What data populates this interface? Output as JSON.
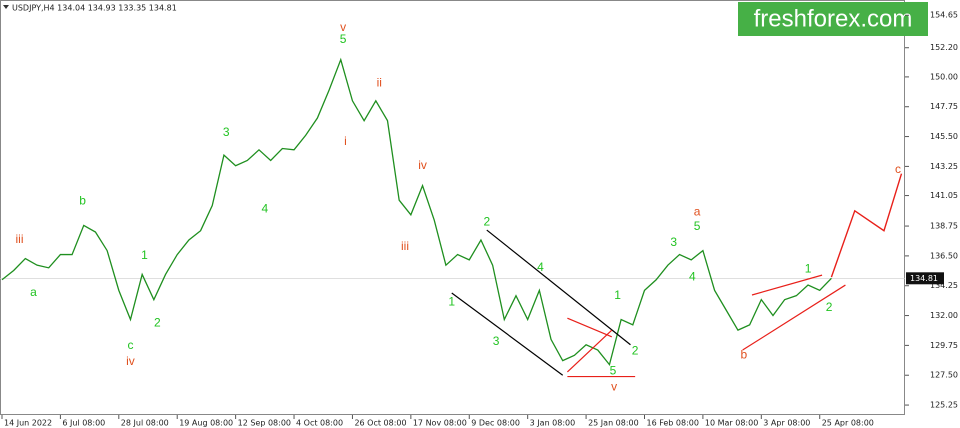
{
  "chart_data": {
    "type": "line",
    "header": "USDJPY,H4  134.04 134.93 133.35 134.81",
    "watermark": "freshforex.com",
    "categories": [
      "14 Jun 2022",
      null,
      null,
      null,
      null,
      "6 Jul 08:00",
      null,
      null,
      null,
      null,
      "28 Jul 08:00",
      null,
      null,
      null,
      null,
      "19 Aug 08:00",
      null,
      null,
      null,
      null,
      "12 Sep 08:00",
      null,
      null,
      null,
      null,
      "4 Oct 08:00",
      null,
      null,
      null,
      null,
      "26 Oct 08:00",
      null,
      null,
      null,
      null,
      "17 Nov 08:00",
      null,
      null,
      null,
      null,
      "9 Dec 08:00",
      null,
      null,
      null,
      null,
      "3 Jan 08:00",
      null,
      null,
      null,
      null,
      "25 Jan 08:00",
      null,
      null,
      null,
      null,
      "16 Feb 08:00",
      null,
      null,
      null,
      null,
      "10 Mar 08:00",
      null,
      null,
      null,
      null,
      "3 Apr 08:00",
      null,
      null,
      null,
      null,
      "25 Apr 08:00",
      null
    ],
    "series": [
      {
        "name": "USDJPY",
        "color": "#1f8f1f",
        "values": [
          134.7,
          135.4,
          136.3,
          135.8,
          135.6,
          136.6,
          136.6,
          138.8,
          138.3,
          136.9,
          133.9,
          131.7,
          135.1,
          133.2,
          135.1,
          136.6,
          137.7,
          138.4,
          140.3,
          144.1,
          143.3,
          143.7,
          144.5,
          143.7,
          144.6,
          144.5,
          145.6,
          146.9,
          149.0,
          151.3,
          148.2,
          146.7,
          148.2,
          146.7,
          140.7,
          139.6,
          141.8,
          139.2,
          135.8,
          136.6,
          136.2,
          137.7,
          135.8,
          131.7,
          133.5,
          131.7,
          133.9,
          130.2,
          128.6,
          129.0,
          129.8,
          129.4,
          128.3,
          131.7,
          131.3,
          133.9,
          134.7,
          135.8,
          136.6,
          136.2,
          136.9,
          133.9,
          132.4,
          130.9,
          131.3,
          133.2,
          132.0,
          133.2,
          133.5,
          134.3,
          133.9,
          134.81
        ]
      }
    ],
    "forecast": {
      "color": "#e8201a",
      "x": [
        71,
        73,
        75.5,
        77
      ],
      "values": [
        134.9,
        139.9,
        138.4,
        142.7
      ]
    },
    "lines": [
      {
        "color": "#000000",
        "x": [
          41.5,
          53.8
        ],
        "values": [
          138.45,
          129.8
        ]
      },
      {
        "color": "#000000",
        "x": [
          38.5,
          48.0
        ],
        "values": [
          133.7,
          127.5
        ]
      },
      {
        "color": "#e8201a",
        "x": [
          48.4,
          52.2
        ],
        "values": [
          131.8,
          130.4
        ]
      },
      {
        "color": "#e8201a",
        "x": [
          48.4,
          52.2
        ],
        "values": [
          127.75,
          130.9
        ]
      },
      {
        "color": "#e8201a",
        "x": [
          48.4,
          54.2
        ],
        "values": [
          127.4,
          127.4
        ]
      },
      {
        "color": "#e8201a",
        "x": [
          64.2,
          70.2
        ],
        "values": [
          133.55,
          135.05
        ]
      },
      {
        "color": "#e8201a",
        "x": [
          63.4,
          72.2
        ],
        "values": [
          129.4,
          134.3
        ]
      }
    ],
    "annotations": [
      {
        "text": "iii",
        "x": 1.5,
        "y": 137.7,
        "color": "#e0501e"
      },
      {
        "text": "a",
        "x": 2.7,
        "y": 133.7,
        "color": "#22c322"
      },
      {
        "text": "b",
        "x": 6.9,
        "y": 140.6,
        "color": "#22c322"
      },
      {
        "text": "1",
        "x": 12.2,
        "y": 136.5,
        "color": "#22c322"
      },
      {
        "text": "2",
        "x": 13.3,
        "y": 131.4,
        "color": "#22c322"
      },
      {
        "text": "c",
        "x": 11.0,
        "y": 129.7,
        "color": "#22c322"
      },
      {
        "text": "iv",
        "x": 11.0,
        "y": 128.5,
        "color": "#e0501e"
      },
      {
        "text": "3",
        "x": 19.2,
        "y": 145.8,
        "color": "#22c322"
      },
      {
        "text": "4",
        "x": 22.5,
        "y": 140.0,
        "color": "#22c322"
      },
      {
        "text": "v",
        "x": 29.2,
        "y": 153.7,
        "color": "#e0501e"
      },
      {
        "text": "5",
        "x": 29.2,
        "y": 152.8,
        "color": "#22c322"
      },
      {
        "text": "ii",
        "x": 32.3,
        "y": 149.5,
        "color": "#e0501e"
      },
      {
        "text": "i",
        "x": 29.4,
        "y": 145.1,
        "color": "#e0501e"
      },
      {
        "text": "iv",
        "x": 36.0,
        "y": 143.3,
        "color": "#e0501e"
      },
      {
        "text": "iii",
        "x": 34.5,
        "y": 137.2,
        "color": "#e0501e"
      },
      {
        "text": "1",
        "x": 38.5,
        "y": 133.0,
        "color": "#22c322"
      },
      {
        "text": "2",
        "x": 41.5,
        "y": 139.05,
        "color": "#22c322"
      },
      {
        "text": "3",
        "x": 42.3,
        "y": 130.0,
        "color": "#22c322"
      },
      {
        "text": "4",
        "x": 46.1,
        "y": 135.6,
        "color": "#22c322"
      },
      {
        "text": "5",
        "x": 52.3,
        "y": 127.8,
        "color": "#22c322"
      },
      {
        "text": "v",
        "x": 52.4,
        "y": 126.6,
        "color": "#e0501e"
      },
      {
        "text": "1",
        "x": 52.7,
        "y": 133.5,
        "color": "#22c322"
      },
      {
        "text": "2",
        "x": 54.2,
        "y": 129.3,
        "color": "#22c322"
      },
      {
        "text": "3",
        "x": 57.5,
        "y": 137.5,
        "color": "#22c322"
      },
      {
        "text": "4",
        "x": 59.1,
        "y": 134.9,
        "color": "#22c322"
      },
      {
        "text": "5",
        "x": 59.5,
        "y": 138.7,
        "color": "#22c322"
      },
      {
        "text": "a",
        "x": 59.5,
        "y": 139.8,
        "color": "#e0501e"
      },
      {
        "text": "b",
        "x": 63.5,
        "y": 129.0,
        "color": "#e0501e"
      },
      {
        "text": "1",
        "x": 69.0,
        "y": 135.5,
        "color": "#22c322"
      },
      {
        "text": "2",
        "x": 70.8,
        "y": 132.6,
        "color": "#22c322"
      },
      {
        "text": "c",
        "x": 76.7,
        "y": 143.0,
        "color": "#e0501e"
      }
    ],
    "xlim": [
      -0.17,
      77.3
    ],
    "ylim": [
      124.5,
      155.8
    ],
    "yticks": [
      154.65,
      {
        "value": 152.2,
        "label": "152.20"
      },
      {
        "value": 150,
        "label": "150.00"
      },
      147.75,
      {
        "value": 145.5,
        "label": "145.50"
      },
      143.25,
      141.05,
      138.75,
      {
        "value": 136.5,
        "label": "136.50"
      },
      134.25,
      {
        "value": 132,
        "label": "132.00"
      },
      129.75,
      {
        "value": 127.5,
        "label": "127.50"
      },
      125.25
    ]
  }
}
